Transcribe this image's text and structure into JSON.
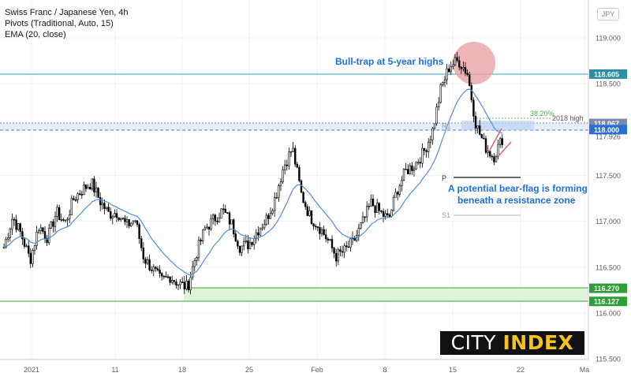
{
  "legend": {
    "symbol": "Swiss Franc / Japanese Yen, 4h",
    "pivots": "Pivots (Traditional, Auto, 15)",
    "ema": "EMA (20, close)"
  },
  "currency_badge": "JPY",
  "brand": {
    "part1": "CITY ",
    "part2": "INDEX"
  },
  "colors": {
    "ema": "#4f8fd6",
    "resistance": "#3a9fb5",
    "support_zone": "#d9f2d2",
    "support_line": "#39a03a",
    "annotation": "#1e6fe0",
    "candle": "#000000",
    "bullrap_circle": "#e89aa0",
    "flag": "#e0505a"
  },
  "chart_data": {
    "type": "candlestick",
    "title": "Swiss Franc / Japanese Yen, 4h",
    "currency": "JPY",
    "ylim": [
      115.5,
      119.15
    ],
    "y_ticks": [
      {
        "value": 119.0,
        "label": "119.000"
      },
      {
        "value": 118.5,
        "label": "118.500"
      },
      {
        "value": 117.926,
        "label": "117.926"
      },
      {
        "value": 117.5,
        "label": "117.500"
      },
      {
        "value": 117.0,
        "label": "117.000"
      },
      {
        "value": 116.5,
        "label": "116.500"
      },
      {
        "value": 116.0,
        "label": "116.000"
      },
      {
        "value": 115.5,
        "label": "115.500"
      }
    ],
    "price_labels": [
      {
        "value": 118.605,
        "label": "118.605",
        "color": "#2b8fa3"
      },
      {
        "value": 118.067,
        "label": "118.067",
        "color": "#7a8aa8"
      },
      {
        "value": 118.0,
        "label": "118.000",
        "color": "#2b6fd0"
      },
      {
        "value": 116.27,
        "label": "116.270",
        "color": "#2f9e3a"
      },
      {
        "value": 116.127,
        "label": "116.127",
        "color": "#2f9e3a"
      }
    ],
    "x_ticks": [
      "2021",
      "11",
      "18",
      "25",
      "Feb",
      "8",
      "15",
      "22",
      "Ma"
    ],
    "close_path": [
      [
        0,
        116.72
      ],
      [
        1,
        117.05
      ],
      [
        2,
        116.85
      ],
      [
        3,
        116.58
      ],
      [
        4,
        116.95
      ],
      [
        5,
        116.82
      ],
      [
        6,
        117.1
      ],
      [
        7,
        116.98
      ],
      [
        8,
        117.25
      ],
      [
        9,
        117.35
      ],
      [
        10,
        117.42
      ],
      [
        11,
        117.22
      ],
      [
        12,
        117.08
      ],
      [
        13,
        117.1
      ],
      [
        14,
        116.95
      ],
      [
        15,
        117.02
      ],
      [
        16,
        116.6
      ],
      [
        17,
        116.48
      ],
      [
        18,
        116.35
      ],
      [
        19,
        116.4
      ],
      [
        20,
        116.32
      ],
      [
        21,
        116.28
      ],
      [
        22,
        116.65
      ],
      [
        23,
        116.92
      ],
      [
        24,
        117.02
      ],
      [
        25,
        117.12
      ],
      [
        26,
        116.98
      ],
      [
        27,
        116.72
      ],
      [
        28,
        116.75
      ],
      [
        29,
        116.9
      ],
      [
        30,
        117.02
      ],
      [
        31,
        117.25
      ],
      [
        32,
        117.6
      ],
      [
        33,
        117.8
      ],
      [
        34,
        117.3
      ],
      [
        35,
        117.05
      ],
      [
        36,
        116.95
      ],
      [
        37,
        116.8
      ],
      [
        38,
        116.62
      ],
      [
        39,
        116.68
      ],
      [
        40,
        116.78
      ],
      [
        41,
        116.98
      ],
      [
        42,
        117.2
      ],
      [
        43,
        117.1
      ],
      [
        44,
        117.02
      ],
      [
        45,
        117.35
      ],
      [
        46,
        117.55
      ],
      [
        47,
        117.62
      ],
      [
        48,
        117.75
      ],
      [
        49,
        117.98
      ],
      [
        50,
        118.45
      ],
      [
        51,
        118.7
      ],
      [
        52,
        118.75
      ],
      [
        53,
        118.62
      ],
      [
        54,
        118.05
      ],
      [
        55,
        117.82
      ],
      [
        56,
        117.7
      ],
      [
        57,
        117.9
      ]
    ],
    "ema_period": 20,
    "key_levels": {
      "resistance_5yr_high": 118.605,
      "level_2018_high": 118.067,
      "round_level": 118.0,
      "support_zone_top": 116.27,
      "support_zone_bottom": 116.127,
      "pivot_R1": 117.95,
      "pivot_P": 117.47,
      "pivot_S1": 117.05,
      "fib_38_2": 118.1
    },
    "annotations": [
      {
        "text": "Bull-trap at 5-year highs"
      },
      {
        "text": "A potential bear-flag is forming"
      },
      {
        "text": "beneath a resistance zone"
      },
      {
        "text": "38.20%"
      },
      {
        "text": "2018 high"
      },
      {
        "text": "R1"
      },
      {
        "text": "P"
      },
      {
        "text": "S1"
      }
    ]
  }
}
